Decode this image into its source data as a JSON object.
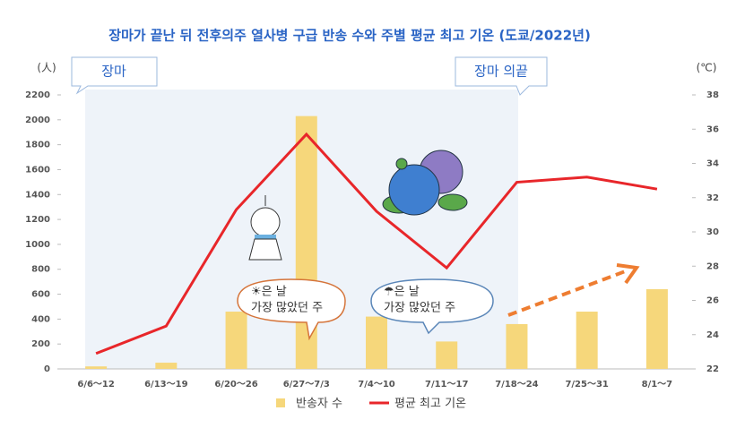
{
  "chart_data": {
    "type": "bar",
    "title": "장마가 끝난 뒤 전후의주   열사병 구급 반송 수와  주별 평균 최고 기온 (도쿄/2022년)",
    "y_unit": "(人)",
    "y2_unit": "(℃)",
    "categories": [
      "6/6～12",
      "6/13～19",
      "6/20～26",
      "6/27～7/3",
      "7/4～10",
      "7/11～17",
      "7/18～24",
      "7/25～31",
      "8/1～7"
    ],
    "series": [
      {
        "name": "반송자 수",
        "type": "bar",
        "color": "#f6d77b",
        "values": [
          20,
          50,
          460,
          2030,
          420,
          220,
          360,
          460,
          640
        ]
      },
      {
        "name": "평균 최고 기온",
        "type": "line",
        "axis": "y2",
        "color": "#e8262a",
        "values": [
          22.9,
          24.5,
          31.3,
          35.7,
          31.2,
          27.9,
          32.9,
          33.2,
          32.5
        ]
      }
    ],
    "ylim": [
      0,
      2200
    ],
    "yticks": [
      0,
      200,
      400,
      600,
      800,
      1000,
      1200,
      1400,
      1600,
      1800,
      2000,
      2200
    ],
    "y2lim": [
      22,
      38
    ],
    "y2ticks": [
      22,
      24,
      26,
      28,
      30,
      32,
      34,
      36,
      38
    ],
    "annotations": {
      "rainy_start": "장마",
      "rainy_end": "장마 의끝",
      "sunny_callout": [
        "☀은 날",
        "가장 많았던 주"
      ],
      "rainy_callout": [
        "☂은 날",
        "가장 많았던 주"
      ]
    },
    "legend": "bottom"
  }
}
